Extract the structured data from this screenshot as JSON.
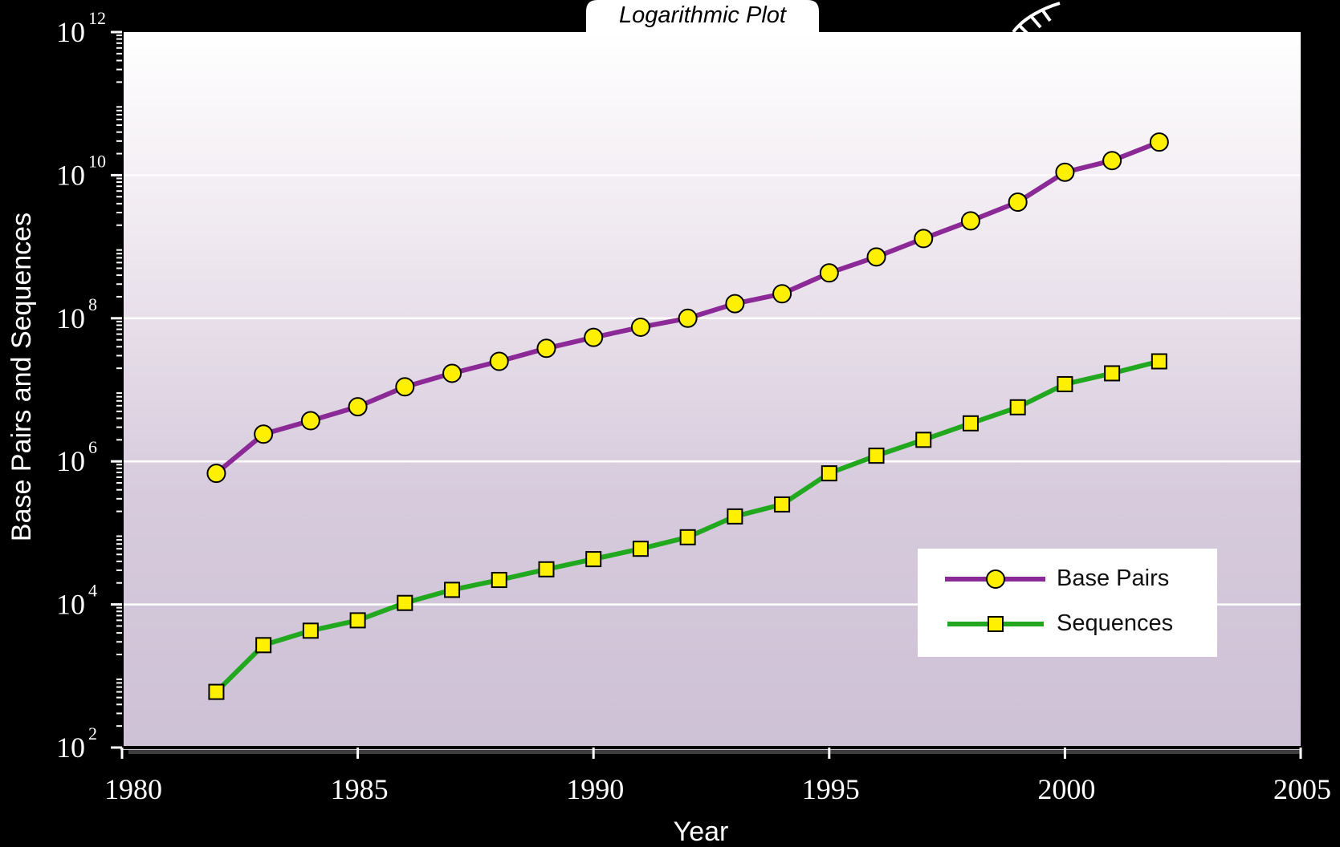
{
  "chart_data": {
    "type": "line",
    "title": "Logarithmic Plot",
    "xlabel": "Year",
    "ylabel": "Base Pairs and Sequences",
    "xlim": [
      1980,
      2005
    ],
    "ylim": [
      100,
      1000000000000
    ],
    "yscale": "log",
    "x_ticks": [
      "1980",
      "1985",
      "1990",
      "1995",
      "2000",
      "2005"
    ],
    "y_ticks": [
      {
        "base": "10",
        "exp": "2",
        "value": 100
      },
      {
        "base": "10",
        "exp": "4",
        "value": 10000
      },
      {
        "base": "10",
        "exp": "6",
        "value": 1000000
      },
      {
        "base": "10",
        "exp": "8",
        "value": 100000000
      },
      {
        "base": "10",
        "exp": "10",
        "value": 10000000000
      },
      {
        "base": "10",
        "exp": "12",
        "value": 1000000000000
      }
    ],
    "grid": true,
    "legend_position": "bottom-right",
    "x": [
      1982,
      1983,
      1984,
      1985,
      1986,
      1987,
      1988,
      1989,
      1990,
      1991,
      1992,
      1993,
      1994,
      1995,
      1996,
      1997,
      1998,
      1999,
      2000,
      2001,
      2002
    ],
    "series": [
      {
        "name": "Base Pairs",
        "color": "#8b2a96",
        "marker": "circle",
        "values": [
          680000,
          2400000,
          3700000,
          5800000,
          11000000,
          17000000,
          25000000,
          38000000,
          54000000,
          75000000,
          100000000,
          160000000,
          220000000,
          430000000,
          720000000,
          1300000000,
          2300000000,
          4200000000,
          11000000000,
          16000000000,
          29000000000
        ]
      },
      {
        "name": "Sequences",
        "color": "#22a81f",
        "marker": "square",
        "values": [
          600,
          2700,
          4300,
          6000,
          10500,
          16000,
          22000,
          31000,
          43000,
          60000,
          87000,
          170000,
          250000,
          680000,
          1200000,
          2000000,
          3400000,
          5700000,
          12000000,
          17000000,
          25000000
        ]
      }
    ]
  },
  "colors": {
    "background": "#000000",
    "plot_top": "#ffffff",
    "plot_bottom": "#cec1d6",
    "grid": "#ffffff",
    "marker_fill": "#ffef00"
  }
}
